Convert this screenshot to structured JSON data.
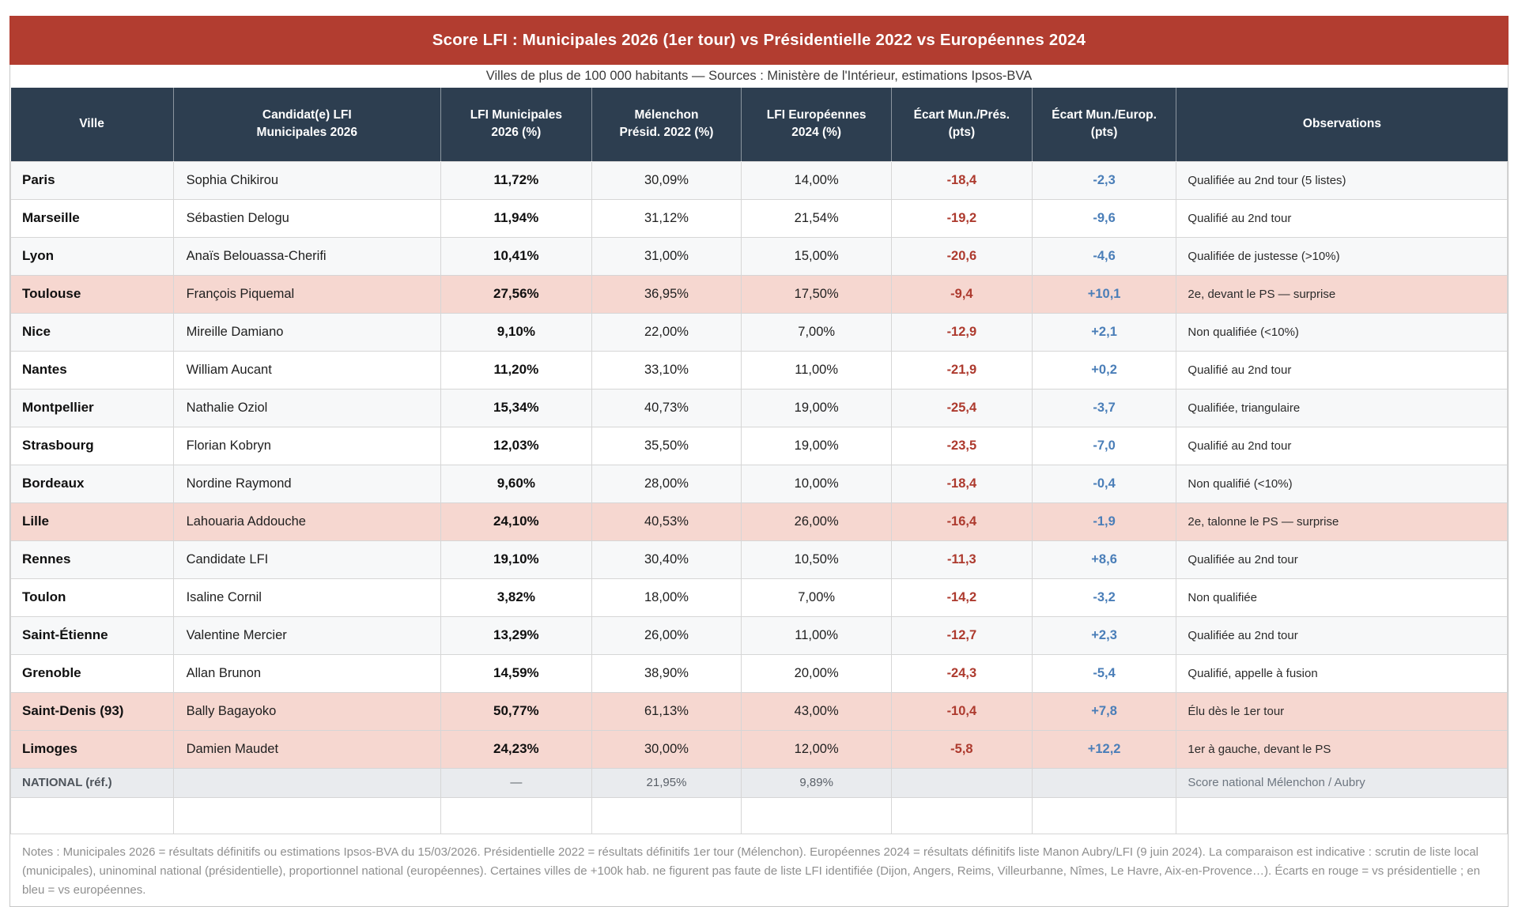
{
  "title": "Score LFI : Municipales 2026 (1er tour) vs Présidentielle 2022 vs Européennes 2024",
  "subtitle": "Villes de plus de 100 000 habitants — Sources : Ministère de l'Intérieur, estimations Ipsos-BVA",
  "colors": {
    "title_band_red": "#b23d30",
    "header_navy": "#2d3e50",
    "highlight_pink": "#f6d7d0",
    "ecart_pres_red": "#ad3a2e",
    "ecart_europ_blue": "#4a7eb8",
    "national_row_gray": "#e9ebee"
  },
  "columns": [
    {
      "key": "ville",
      "label": "Ville"
    },
    {
      "key": "candidat",
      "label": "Candidat(e) LFI\nMunicipales 2026"
    },
    {
      "key": "mun",
      "label": "LFI Municipales\n2026 (%)"
    },
    {
      "key": "pres",
      "label": "Mélenchon\nPrésid. 2022 (%)"
    },
    {
      "key": "eur",
      "label": "LFI Européennes\n2024 (%)"
    },
    {
      "key": "ecart_pres",
      "label": "Écart Mun./Prés.\n(pts)"
    },
    {
      "key": "ecart_eur",
      "label": "Écart Mun./Europ.\n(pts)"
    },
    {
      "key": "obs",
      "label": "Observations"
    }
  ],
  "rows": [
    {
      "ville": "Paris",
      "candidat": "Sophia Chikirou",
      "mun": "11,72%",
      "pres": "30,09%",
      "eur": "14,00%",
      "ecart_pres": "-18,4",
      "ecart_eur": "-2,3",
      "obs": "Qualifiée au 2nd tour (5 listes)",
      "highlight": false
    },
    {
      "ville": "Marseille",
      "candidat": "Sébastien Delogu",
      "mun": "11,94%",
      "pres": "31,12%",
      "eur": "21,54%",
      "ecart_pres": "-19,2",
      "ecart_eur": "-9,6",
      "obs": "Qualifié au 2nd tour",
      "highlight": false
    },
    {
      "ville": "Lyon",
      "candidat": "Anaïs Belouassa-Cherifi",
      "mun": "10,41%",
      "pres": "31,00%",
      "eur": "15,00%",
      "ecart_pres": "-20,6",
      "ecart_eur": "-4,6",
      "obs": "Qualifiée de justesse (>10%)",
      "highlight": false
    },
    {
      "ville": "Toulouse",
      "candidat": "François Piquemal",
      "mun": "27,56%",
      "pres": "36,95%",
      "eur": "17,50%",
      "ecart_pres": "-9,4",
      "ecart_eur": "+10,1",
      "obs": "2e, devant le PS — surprise",
      "highlight": true
    },
    {
      "ville": "Nice",
      "candidat": "Mireille Damiano",
      "mun": "9,10%",
      "pres": "22,00%",
      "eur": "7,00%",
      "ecart_pres": "-12,9",
      "ecart_eur": "+2,1",
      "obs": "Non qualifiée (<10%)",
      "highlight": false
    },
    {
      "ville": "Nantes",
      "candidat": "William Aucant",
      "mun": "11,20%",
      "pres": "33,10%",
      "eur": "11,00%",
      "ecart_pres": "-21,9",
      "ecart_eur": "+0,2",
      "obs": "Qualifié au 2nd tour",
      "highlight": false
    },
    {
      "ville": "Montpellier",
      "candidat": "Nathalie Oziol",
      "mun": "15,34%",
      "pres": "40,73%",
      "eur": "19,00%",
      "ecart_pres": "-25,4",
      "ecart_eur": "-3,7",
      "obs": "Qualifiée, triangulaire",
      "highlight": false
    },
    {
      "ville": "Strasbourg",
      "candidat": "Florian Kobryn",
      "mun": "12,03%",
      "pres": "35,50%",
      "eur": "19,00%",
      "ecart_pres": "-23,5",
      "ecart_eur": "-7,0",
      "obs": "Qualifié au 2nd tour",
      "highlight": false
    },
    {
      "ville": "Bordeaux",
      "candidat": "Nordine Raymond",
      "mun": "9,60%",
      "pres": "28,00%",
      "eur": "10,00%",
      "ecart_pres": "-18,4",
      "ecart_eur": "-0,4",
      "obs": "Non qualifié (<10%)",
      "highlight": false
    },
    {
      "ville": "Lille",
      "candidat": "Lahouaria Addouche",
      "mun": "24,10%",
      "pres": "40,53%",
      "eur": "26,00%",
      "ecart_pres": "-16,4",
      "ecart_eur": "-1,9",
      "obs": "2e, talonne le PS — surprise",
      "highlight": true
    },
    {
      "ville": "Rennes",
      "candidat": "Candidate LFI",
      "mun": "19,10%",
      "pres": "30,40%",
      "eur": "10,50%",
      "ecart_pres": "-11,3",
      "ecart_eur": "+8,6",
      "obs": "Qualifiée au 2nd tour",
      "highlight": false
    },
    {
      "ville": "Toulon",
      "candidat": "Isaline Cornil",
      "mun": "3,82%",
      "pres": "18,00%",
      "eur": "7,00%",
      "ecart_pres": "-14,2",
      "ecart_eur": "-3,2",
      "obs": "Non qualifiée",
      "highlight": false
    },
    {
      "ville": "Saint-Étienne",
      "candidat": "Valentine Mercier",
      "mun": "13,29%",
      "pres": "26,00%",
      "eur": "11,00%",
      "ecart_pres": "-12,7",
      "ecart_eur": "+2,3",
      "obs": "Qualifiée au 2nd tour",
      "highlight": false
    },
    {
      "ville": "Grenoble",
      "candidat": "Allan Brunon",
      "mun": "14,59%",
      "pres": "38,90%",
      "eur": "20,00%",
      "ecart_pres": "-24,3",
      "ecart_eur": "-5,4",
      "obs": "Qualifié, appelle à fusion",
      "highlight": false
    },
    {
      "ville": "Saint-Denis (93)",
      "candidat": "Bally Bagayoko",
      "mun": "50,77%",
      "pres": "61,13%",
      "eur": "43,00%",
      "ecart_pres": "-10,4",
      "ecart_eur": "+7,8",
      "obs": "Élu dès le 1er tour",
      "highlight": true
    },
    {
      "ville": "Limoges",
      "candidat": "Damien Maudet",
      "mun": "24,23%",
      "pres": "30,00%",
      "eur": "12,00%",
      "ecart_pres": "-5,8",
      "ecart_eur": "+12,2",
      "obs": "1er à gauche, devant le PS",
      "highlight": true
    }
  ],
  "national_row": {
    "ville": "NATIONAL (réf.)",
    "candidat": "",
    "mun": "—",
    "pres": "21,95%",
    "eur": "9,89%",
    "ecart_pres": "",
    "ecart_eur": "",
    "obs": "Score national Mélenchon / Aubry"
  },
  "notes": "Notes : Municipales 2026 = résultats définitifs ou estimations Ipsos-BVA du 15/03/2026. Présidentielle 2022 = résultats définitifs 1er tour (Mélenchon). Européennes 2024 = résultats définitifs liste Manon Aubry/LFI (9 juin 2024). La comparaison est indicative : scrutin de liste local (municipales), uninominal national (présidentielle), proportionnel national (européennes). Certaines villes de +100k hab. ne figurent pas faute de liste LFI identifiée (Dijon, Angers, Reims, Villeurbanne, Nîmes, Le Havre, Aix-en-Provence…). Écarts en rouge = vs présidentielle ; en bleu = vs européennes."
}
